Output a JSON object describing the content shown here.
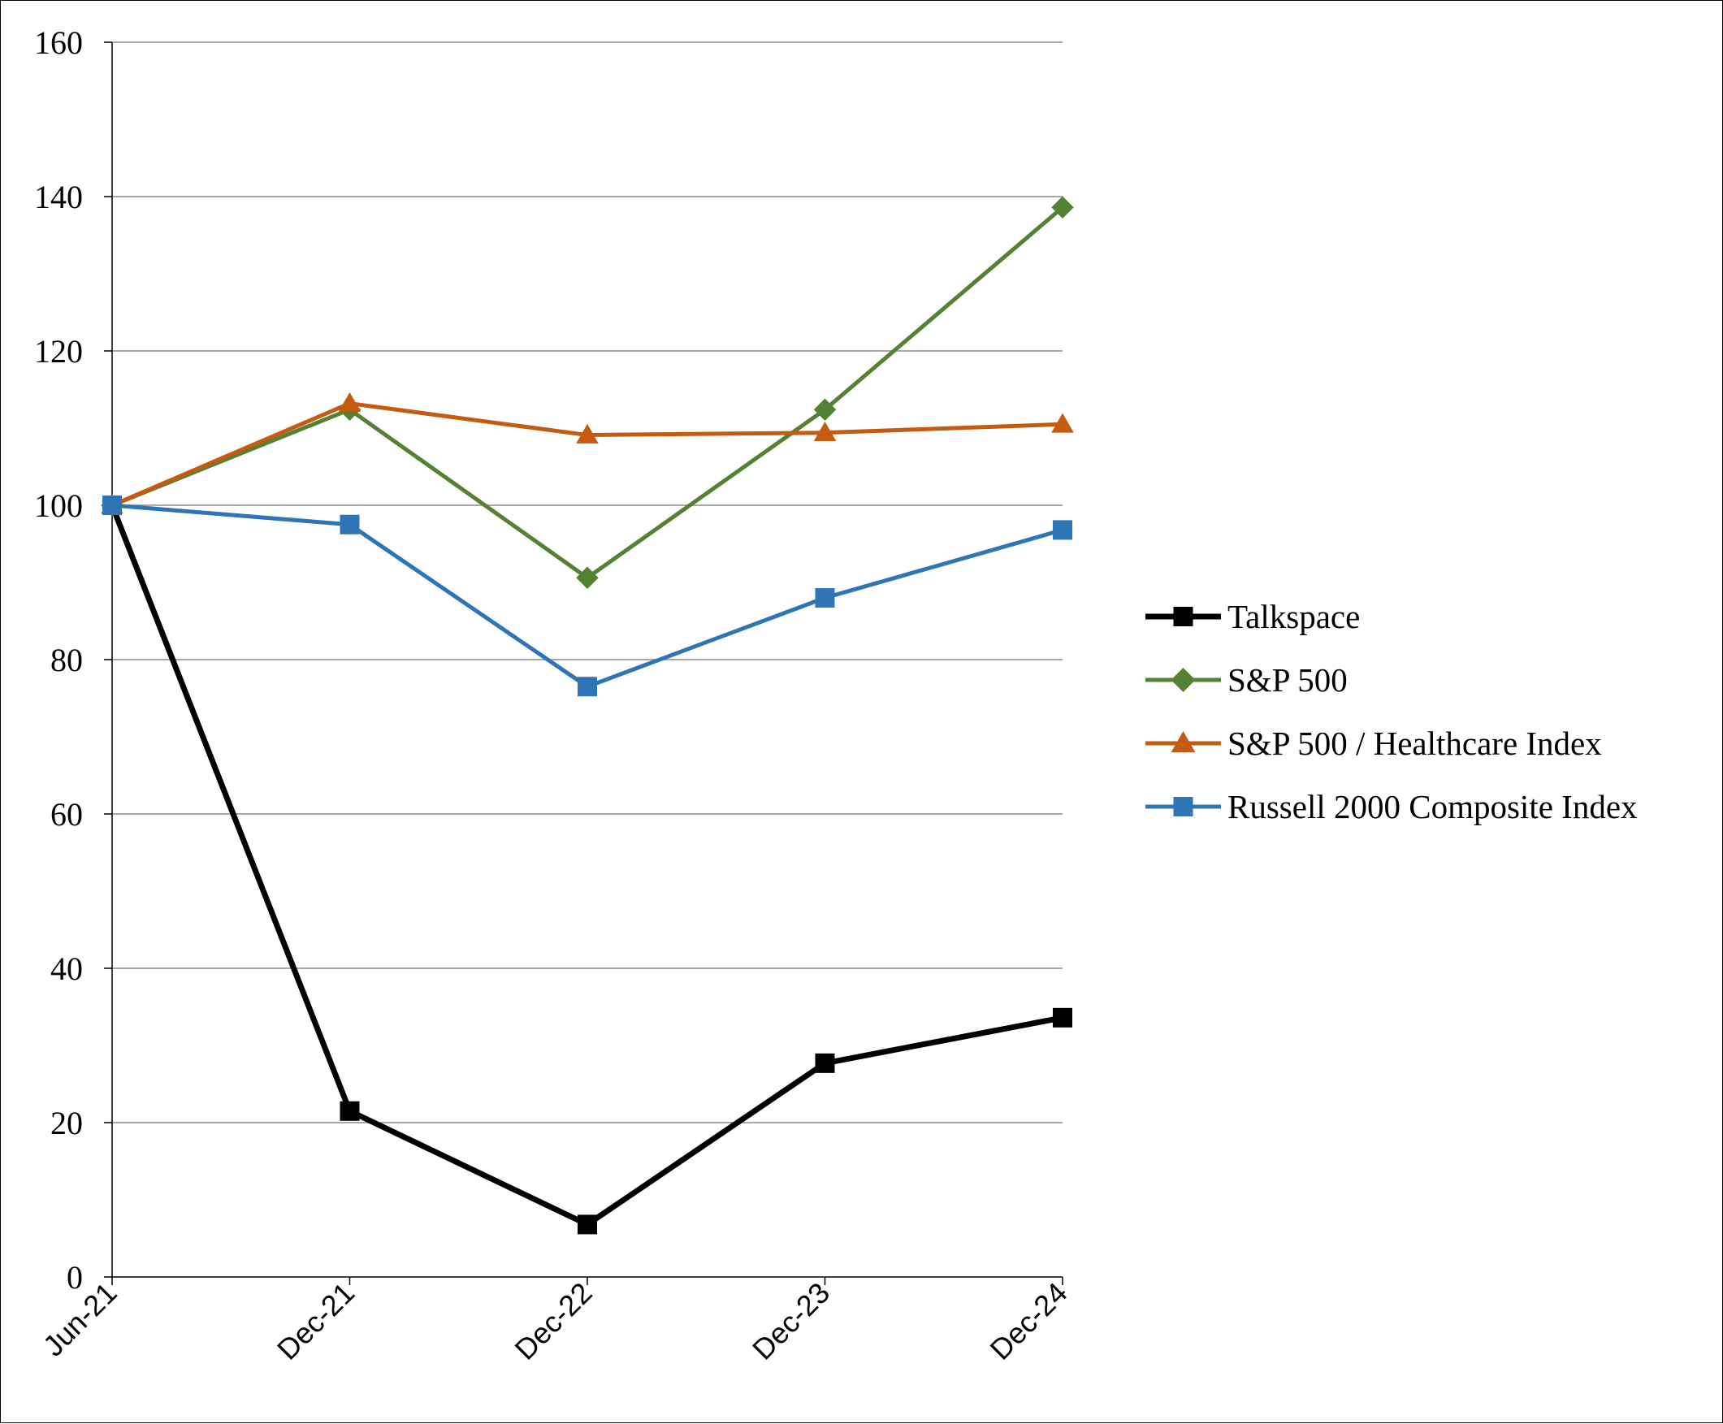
{
  "chart_data": {
    "type": "line",
    "title": "",
    "xlabel": "",
    "ylabel": "",
    "ylim": [
      0,
      160
    ],
    "yticks": [
      0,
      20,
      40,
      60,
      80,
      100,
      120,
      140,
      160
    ],
    "categories": [
      "Jun-21",
      "Dec-21",
      "Dec-22",
      "Dec-23",
      "Dec-24"
    ],
    "grid": "horizontal",
    "legend_position": "right",
    "series": [
      {
        "name": "Talkspace",
        "values": [
          100,
          21.5,
          6.8,
          27.7,
          33.6
        ],
        "color": "#000000",
        "marker": "square"
      },
      {
        "name": "S&P 500",
        "values": [
          100,
          112.4,
          90.6,
          112.4,
          138.6
        ],
        "color": "#548235",
        "marker": "diamond"
      },
      {
        "name": "S&P 500 / Healthcare Index",
        "values": [
          100,
          113.2,
          109.1,
          109.4,
          110.5
        ],
        "color": "#C55A11",
        "marker": "triangle"
      },
      {
        "name": "Russell 2000 Composite Index",
        "values": [
          100,
          97.5,
          76.5,
          88.0,
          96.8
        ],
        "color": "#2E75B6",
        "marker": "square"
      }
    ]
  }
}
